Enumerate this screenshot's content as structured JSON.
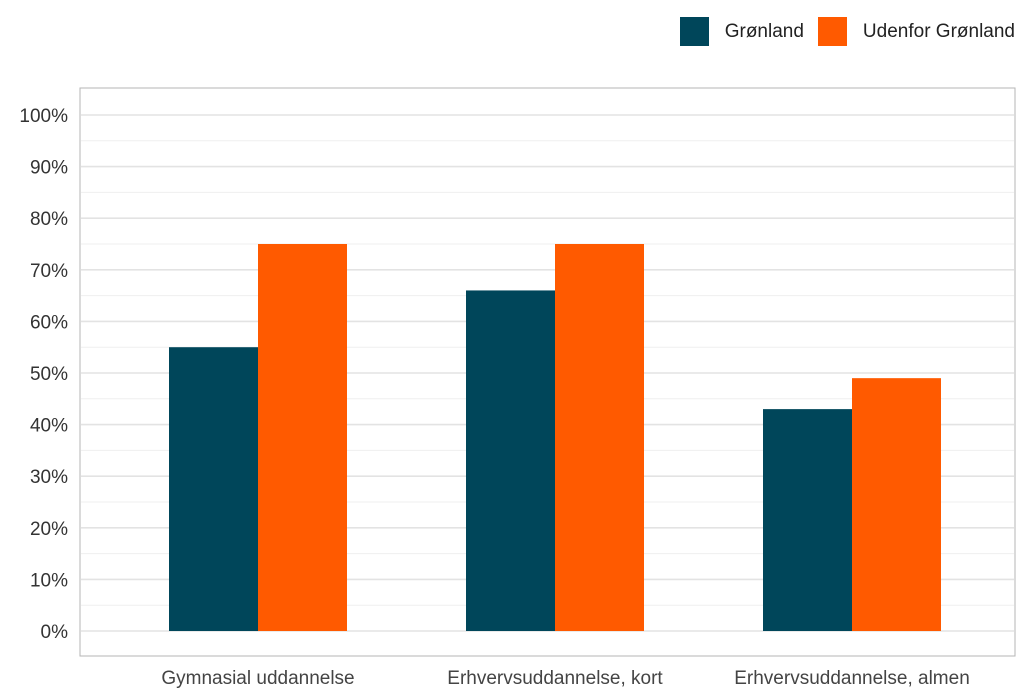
{
  "chart_data": {
    "type": "bar",
    "categories": [
      "Gymnasial uddannelse",
      "Erhvervsuddannelse, kort",
      "Erhvervsuddannelse, almen"
    ],
    "series": [
      {
        "name": "Grønland",
        "color": "#00465a",
        "values": [
          55,
          66,
          43
        ]
      },
      {
        "name": "Udenfor Grønland",
        "color": "#ff5a00",
        "values": [
          75,
          75,
          49
        ]
      }
    ],
    "yticks": [
      "0%",
      "10%",
      "20%",
      "30%",
      "40%",
      "50%",
      "60%",
      "70%",
      "80%",
      "90%",
      "100%"
    ],
    "ylim": [
      0,
      100
    ],
    "grid": true,
    "legend": "top-right"
  }
}
